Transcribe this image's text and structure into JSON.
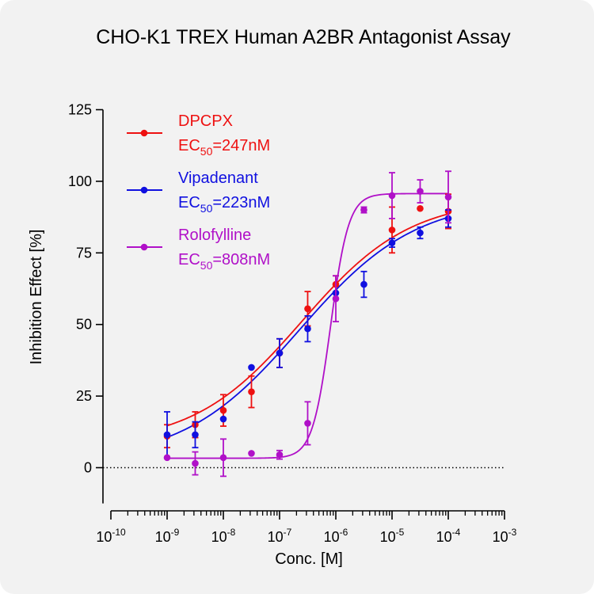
{
  "chart_data": {
    "type": "scatter",
    "title": "CHO-K1 TREX Human A2BR Antagonist Assay",
    "xlabel": "Conc. [M]",
    "ylabel": "Inhibition Effect [%]",
    "x_scale": "log",
    "xlim": [
      1e-10,
      0.001
    ],
    "ylim": [
      -10,
      125
    ],
    "x_ticks": [
      {
        "value": 1e-10,
        "base": "10",
        "exp": "-10"
      },
      {
        "value": 1e-09,
        "base": "10",
        "exp": "-9"
      },
      {
        "value": 1e-08,
        "base": "10",
        "exp": "-8"
      },
      {
        "value": 1e-07,
        "base": "10",
        "exp": "-7"
      },
      {
        "value": 1e-06,
        "base": "10",
        "exp": "-6"
      },
      {
        "value": 1e-05,
        "base": "10",
        "exp": "-5"
      },
      {
        "value": 0.0001,
        "base": "10",
        "exp": "-4"
      },
      {
        "value": 0.001,
        "base": "10",
        "exp": "-3"
      }
    ],
    "y_ticks": [
      0,
      25,
      50,
      75,
      100,
      125
    ],
    "baseline": 0,
    "legend_position": "top-left",
    "series": [
      {
        "name": "DPCPX",
        "ec50_label": {
          "prefix": "EC",
          "sub": "50",
          "value": "=247nM"
        },
        "ec50": 2.47e-07,
        "color": "#ee1111",
        "x": [
          1e-09,
          3.16e-09,
          1e-08,
          3.16e-08,
          1e-07,
          3.16e-07,
          1e-06,
          1e-05,
          3.16e-05,
          0.0001
        ],
        "y": [
          11,
          15,
          20,
          26.5,
          40,
          55.5,
          64,
          83,
          90.5,
          89.5
        ],
        "err": [
          4,
          4.5,
          5.5,
          5.5,
          5,
          6,
          3,
          8,
          0,
          6
        ],
        "curve": {
          "bottom": 8,
          "top": 94,
          "hill": 0.45
        }
      },
      {
        "name": "Vipadenant",
        "ec50_label": {
          "prefix": "EC",
          "sub": "50",
          "value": "=223nM"
        },
        "ec50": 2.23e-07,
        "color": "#1010e0",
        "x": [
          1e-09,
          3.16e-09,
          1e-08,
          3.16e-08,
          1e-07,
          3.16e-07,
          1e-06,
          3.16e-06,
          1e-05,
          3.16e-05,
          0.0001
        ],
        "y": [
          11.5,
          11.5,
          17,
          35,
          40,
          48.5,
          61,
          64,
          78.5,
          82,
          87
        ],
        "err": [
          8,
          4.5,
          0,
          0,
          5,
          4.5,
          0,
          4.5,
          1.5,
          2,
          3
        ],
        "curve": {
          "bottom": 2,
          "top": 94,
          "hill": 0.42
        }
      },
      {
        "name": "Rolofylline",
        "ec50_label": {
          "prefix": "EC",
          "sub": "50",
          "value": "=808nM"
        },
        "ec50": 8.08e-07,
        "color": "#b010c8",
        "x": [
          1e-09,
          3.16e-09,
          1e-08,
          3.16e-08,
          1e-07,
          3.16e-07,
          1e-06,
          3.16e-06,
          1e-05,
          3.16e-05,
          0.0001
        ],
        "y": [
          3.5,
          1.5,
          3.5,
          5,
          4.5,
          15.5,
          59,
          90,
          95,
          96.5,
          94.5
        ],
        "err": [
          0,
          4,
          6.5,
          0,
          1.5,
          7.5,
          8,
          1,
          8,
          4,
          9
        ],
        "curve": {
          "bottom": 3.3,
          "top": 95.7,
          "hill": 2.7
        }
      }
    ]
  }
}
